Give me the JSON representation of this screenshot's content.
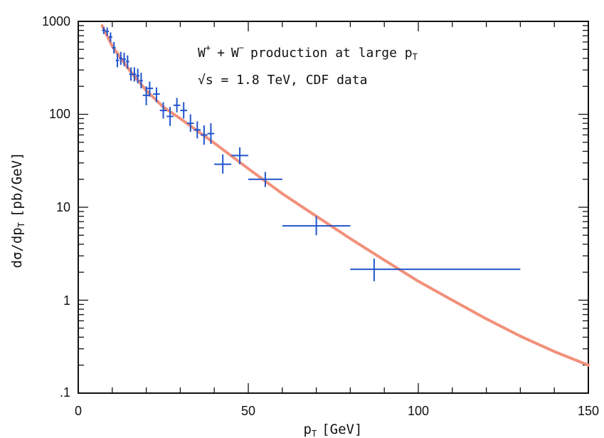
{
  "chart_data": {
    "type": "scatter",
    "xlabel_main": "p",
    "xlabel_sub": "T",
    "xlabel_unit": "[GeV]",
    "ylabel_main": "dσ/dp",
    "ylabel_sub": "T",
    "ylabel_unit": "[pb/GeV]",
    "annotation_line1": {
      "w1": "W",
      "w1_sup": "+",
      "plus": "+",
      "w2": "W",
      "w2_sup": "−",
      "rest": "production at large p",
      "rest_sub": "T"
    },
    "annotation_line2": "√s = 1.8 TeV, CDF data",
    "x_ticks": [
      "0",
      "50",
      "100",
      "150"
    ],
    "y_ticks": [
      ".1",
      "1",
      "10",
      "100",
      "1000"
    ],
    "xlim": [
      0,
      150
    ],
    "ylim": [
      0.1,
      1000
    ],
    "yscale": "log",
    "grid": false,
    "colors": {
      "data": "#2255cc",
      "curve": "#f2907a",
      "axes": "#111111"
    },
    "series": [
      {
        "kind": "error_bars",
        "points": [
          {
            "x": 7.5,
            "y": 800,
            "xerr": 0.5,
            "ylo": 730,
            "yhi": 870
          },
          {
            "x": 8.5,
            "y": 780,
            "xerr": 0.5,
            "ylo": 700,
            "yhi": 860
          },
          {
            "x": 9.5,
            "y": 680,
            "xerr": 0.5,
            "ylo": 600,
            "yhi": 760
          },
          {
            "x": 10.5,
            "y": 520,
            "xerr": 0.5,
            "ylo": 450,
            "yhi": 600
          },
          {
            "x": 11.5,
            "y": 380,
            "xerr": 0.5,
            "ylo": 320,
            "yhi": 450
          },
          {
            "x": 12.5,
            "y": 400,
            "xerr": 0.5,
            "ylo": 340,
            "yhi": 470
          },
          {
            "x": 13.5,
            "y": 390,
            "xerr": 0.5,
            "ylo": 330,
            "yhi": 460
          },
          {
            "x": 14.5,
            "y": 370,
            "xerr": 0.5,
            "ylo": 310,
            "yhi": 430
          },
          {
            "x": 15.5,
            "y": 270,
            "xerr": 0.5,
            "ylo": 230,
            "yhi": 320
          },
          {
            "x": 16.5,
            "y": 270,
            "xerr": 0.5,
            "ylo": 225,
            "yhi": 320
          },
          {
            "x": 17.5,
            "y": 260,
            "xerr": 0.5,
            "ylo": 215,
            "yhi": 310
          },
          {
            "x": 18.5,
            "y": 230,
            "xerr": 0.5,
            "ylo": 190,
            "yhi": 280
          },
          {
            "x": 20,
            "y": 160,
            "xerr": 1,
            "ylo": 125,
            "yhi": 200
          },
          {
            "x": 21,
            "y": 190,
            "xerr": 1,
            "ylo": 155,
            "yhi": 225
          },
          {
            "x": 23,
            "y": 165,
            "xerr": 1,
            "ylo": 135,
            "yhi": 195
          },
          {
            "x": 25,
            "y": 110,
            "xerr": 1,
            "ylo": 90,
            "yhi": 135
          },
          {
            "x": 27,
            "y": 95,
            "xerr": 1,
            "ylo": 75,
            "yhi": 120
          },
          {
            "x": 29,
            "y": 125,
            "xerr": 1,
            "ylo": 105,
            "yhi": 150
          },
          {
            "x": 31,
            "y": 110,
            "xerr": 1,
            "ylo": 90,
            "yhi": 135
          },
          {
            "x": 33,
            "y": 80,
            "xerr": 1,
            "ylo": 65,
            "yhi": 100
          },
          {
            "x": 35,
            "y": 68,
            "xerr": 1,
            "ylo": 55,
            "yhi": 84
          },
          {
            "x": 37,
            "y": 60,
            "xerr": 1,
            "ylo": 47,
            "yhi": 76
          },
          {
            "x": 39,
            "y": 62,
            "xerr": 1,
            "ylo": 48,
            "yhi": 80
          },
          {
            "x": 42.5,
            "y": 29,
            "xerr": 2.5,
            "ylo": 23,
            "yhi": 37
          },
          {
            "x": 47.5,
            "y": 36,
            "xerr": 2.5,
            "ylo": 29,
            "yhi": 44
          },
          {
            "x": 55,
            "y": 20,
            "xerr": 5,
            "ylo": 16.5,
            "yhi": 24
          },
          {
            "x": 70,
            "y": 6.3,
            "xerr": 10,
            "ylo": 5.0,
            "yhi": 8.0
          },
          {
            "x": 87,
            "y": 2.15,
            "xerr": [
              7,
              43
            ],
            "ylo": 1.6,
            "yhi": 2.8
          }
        ]
      },
      {
        "kind": "curve",
        "x": [
          7,
          10,
          15,
          20,
          25,
          30,
          40,
          50,
          60,
          70,
          80,
          90,
          100,
          110,
          120,
          130,
          140,
          150
        ],
        "y": [
          900,
          540,
          300,
          180,
          120,
          90,
          49,
          26,
          14,
          8.0,
          4.6,
          2.7,
          1.6,
          1.0,
          0.63,
          0.41,
          0.28,
          0.2
        ]
      }
    ]
  }
}
